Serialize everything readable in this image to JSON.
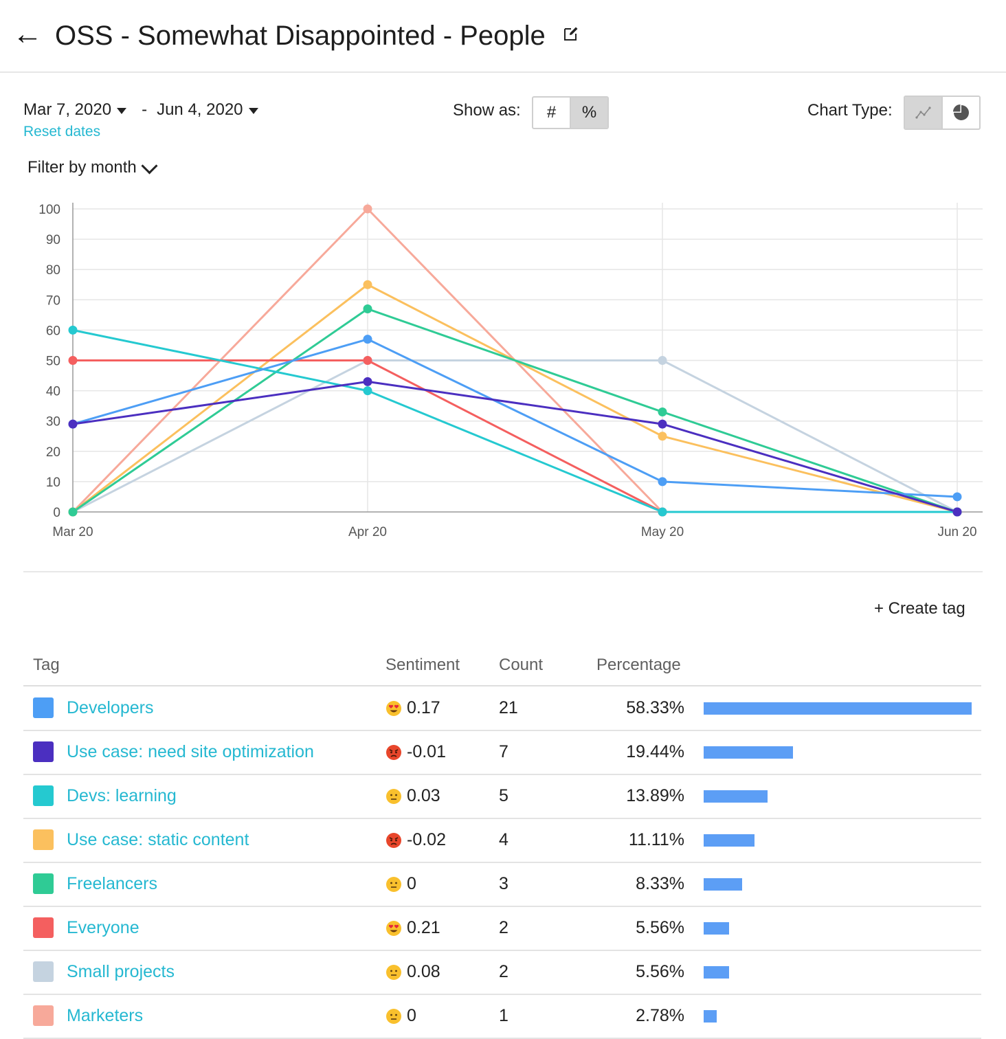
{
  "header": {
    "back_icon": "left-arrow-icon",
    "title": "OSS - Somewhat Disappointed - People",
    "edit_icon": "edit-icon"
  },
  "controls": {
    "start_date": "Mar 7, 2020",
    "end_date": "Jun 4, 2020",
    "date_separator": "-",
    "reset_label": "Reset dates",
    "show_as_label": "Show as:",
    "show_as_options": [
      "#",
      "%"
    ],
    "show_as_selected": "%",
    "chart_type_label": "Chart Type:",
    "chart_type_options": [
      "line-chart-icon",
      "pie-chart-icon"
    ],
    "chart_type_selected": "line-chart-icon",
    "filter_label": "Filter by month"
  },
  "chart_data": {
    "type": "line",
    "categories": [
      "Mar 20",
      "Apr 20",
      "May 20",
      "Jun 20"
    ],
    "ylim": [
      0,
      100
    ],
    "yticks": [
      0,
      10,
      20,
      30,
      40,
      50,
      60,
      70,
      80,
      90,
      100
    ],
    "grid": true,
    "series": [
      {
        "color": "#f7a99a",
        "values": [
          0,
          100,
          0,
          0
        ]
      },
      {
        "color": "#c5d3e0",
        "values": [
          0,
          50,
          50,
          0
        ]
      },
      {
        "color": "#fbc05e",
        "values": [
          0,
          75,
          25,
          0
        ]
      },
      {
        "color": "#2fcb95",
        "values": [
          0,
          67,
          33,
          0
        ]
      },
      {
        "color": "#f45f5f",
        "values": [
          50,
          50,
          0,
          0
        ]
      },
      {
        "color": "#25c9d0",
        "values": [
          60,
          40,
          0,
          0
        ]
      },
      {
        "color": "#4d9ef5",
        "values": [
          29,
          57,
          10,
          5
        ]
      },
      {
        "color": "#4b2fc0",
        "values": [
          29,
          43,
          29,
          0
        ]
      }
    ]
  },
  "create_tag_label": "+ Create tag",
  "table": {
    "headers": {
      "tag": "Tag",
      "sentiment": "Sentiment",
      "count": "Count",
      "percentage": "Percentage"
    },
    "rows": [
      {
        "color": "#4d9ef5",
        "tag": "Developers",
        "emoji": "heart-eyes-emoji",
        "sentiment": "0.17",
        "count": "21",
        "percentage": "58.33%",
        "share": 0.5833
      },
      {
        "color": "#4b2fc0",
        "tag": "Use case: need site optimization",
        "emoji": "angry-face-emoji",
        "sentiment": "-0.01",
        "count": "7",
        "percentage": "19.44%",
        "share": 0.1944
      },
      {
        "color": "#25c9d0",
        "tag": "Devs: learning",
        "emoji": "neutral-face-emoji",
        "sentiment": "0.03",
        "count": "5",
        "percentage": "13.89%",
        "share": 0.1389
      },
      {
        "color": "#fbc05e",
        "tag": "Use case: static content",
        "emoji": "angry-face-emoji",
        "sentiment": "-0.02",
        "count": "4",
        "percentage": "11.11%",
        "share": 0.1111
      },
      {
        "color": "#2fcb95",
        "tag": "Freelancers",
        "emoji": "neutral-face-emoji",
        "sentiment": "0",
        "count": "3",
        "percentage": "8.33%",
        "share": 0.0833
      },
      {
        "color": "#f45f5f",
        "tag": "Everyone",
        "emoji": "heart-eyes-emoji",
        "sentiment": "0.21",
        "count": "2",
        "percentage": "5.56%",
        "share": 0.0556
      },
      {
        "color": "#c5d3e0",
        "tag": "Small projects",
        "emoji": "neutral-face-emoji",
        "sentiment": "0.08",
        "count": "2",
        "percentage": "5.56%",
        "share": 0.0556
      },
      {
        "color": "#f7a99a",
        "tag": "Marketers",
        "emoji": "neutral-face-emoji",
        "sentiment": "0",
        "count": "1",
        "percentage": "2.78%",
        "share": 0.0278
      }
    ]
  }
}
